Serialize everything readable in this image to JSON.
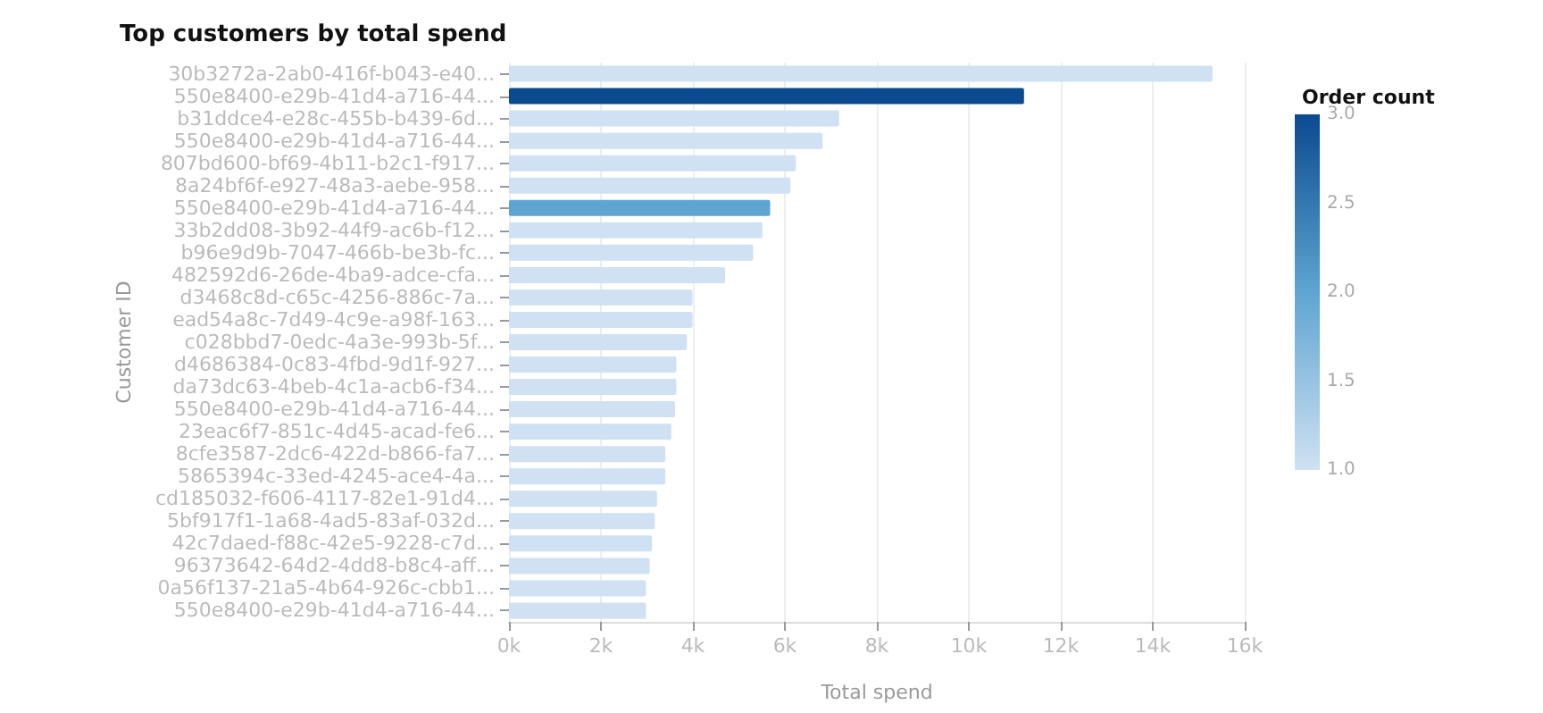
{
  "chart_data": {
    "type": "bar",
    "orientation": "horizontal",
    "title": "Top customers by total spend",
    "xlabel": "Total spend",
    "ylabel": "Customer ID",
    "clabel": "Order count",
    "categories": [
      "30b3272a-2ab0-416f-b043-e40...",
      "550e8400-e29b-41d4-a716-44...",
      "b31ddce4-e28c-455b-b439-6d...",
      "550e8400-e29b-41d4-a716-44...",
      "807bd600-bf69-4b11-b2c1-f917...",
      "8a24bf6f-e927-48a3-aebe-958...",
      "550e8400-e29b-41d4-a716-44...",
      "33b2dd08-3b92-44f9-ac6b-f12...",
      "b96e9d9b-7047-466b-be3b-fc...",
      "482592d6-26de-4ba9-adce-cfa...",
      "d3468c8d-c65c-4256-886c-7a...",
      "ead54a8c-7d49-4c9e-a98f-163...",
      "c028bbd7-0edc-4a3e-993b-5f...",
      "d4686384-0c83-4fbd-9d1f-927...",
      "da73dc63-4beb-4c1a-acb6-f34...",
      "550e8400-e29b-41d4-a716-44...",
      "23eac6f7-851c-4d45-acad-fe6...",
      "8cfe3587-2dc6-422d-b866-fa7...",
      "5865394c-33ed-4245-ace4-4a...",
      "cd185032-f606-4117-82e1-91d4...",
      "5bf917f1-1a68-4ad5-83af-032d...",
      "42c7daed-f88c-42e5-9228-c7d...",
      "96373642-64d2-4dd8-b8c4-aff...",
      "0a56f137-21a5-4b64-926c-cbb1...",
      "550e8400-e29b-41d4-a716-44..."
    ],
    "values": [
      15300,
      11200,
      7180,
      6820,
      6240,
      6120,
      5680,
      5510,
      5310,
      4700,
      3990,
      3990,
      3870,
      3640,
      3640,
      3610,
      3530,
      3400,
      3400,
      3220,
      3170,
      3110,
      3060,
      2980,
      2980
    ],
    "cvalues": [
      1,
      3,
      1,
      1,
      1,
      1,
      2,
      1,
      1,
      1,
      1,
      1,
      1,
      1,
      1,
      1,
      1,
      1,
      1,
      1,
      1,
      1,
      1,
      1,
      1
    ],
    "clim": [
      1,
      3
    ],
    "cticks": [
      {
        "value": 1,
        "label": "1.0"
      },
      {
        "value": 1.5,
        "label": "1.5"
      },
      {
        "value": 2,
        "label": "2.0"
      },
      {
        "value": 2.5,
        "label": "2.5"
      },
      {
        "value": 3,
        "label": "3.0"
      }
    ],
    "xlim": [
      0,
      16000
    ],
    "xticks": [
      {
        "value": 0,
        "label": "0k"
      },
      {
        "value": 2000,
        "label": "2k"
      },
      {
        "value": 4000,
        "label": "4k"
      },
      {
        "value": 6000,
        "label": "6k"
      },
      {
        "value": 8000,
        "label": "8k"
      },
      {
        "value": 10000,
        "label": "10k"
      },
      {
        "value": 12000,
        "label": "12k"
      },
      {
        "value": 14000,
        "label": "14k"
      },
      {
        "value": 16000,
        "label": "16k"
      }
    ],
    "grid": "x"
  }
}
